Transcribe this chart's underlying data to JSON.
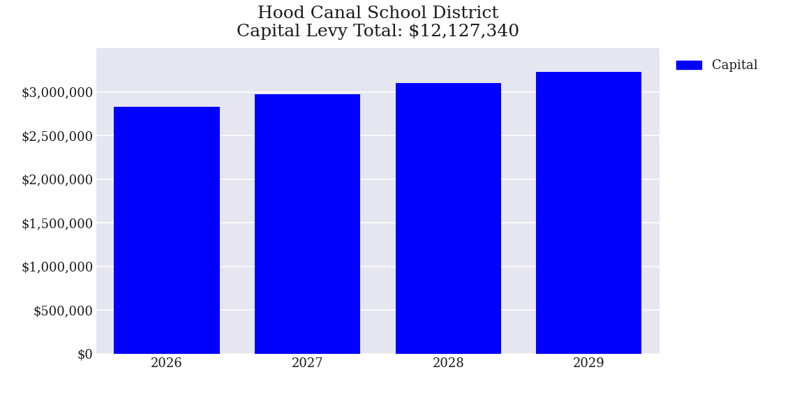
{
  "title_line1": "Hood Canal School District",
  "title_line2": "Capital Levy Total: $12,127,340",
  "categories": [
    "2026",
    "2027",
    "2028",
    "2029"
  ],
  "values": [
    2830000,
    2970000,
    3100000,
    3227340
  ],
  "bar_color": "#0000ff",
  "legend_label": "Capital",
  "figure_bg_color": "#ffffff",
  "plot_bg_color": "#e6e6f0",
  "ylim": [
    0,
    3500000
  ],
  "ytick_values": [
    0,
    500000,
    1000000,
    1500000,
    2000000,
    2500000,
    3000000
  ],
  "title_fontsize": 18,
  "tick_fontsize": 13,
  "legend_fontsize": 13,
  "bar_width": 0.75
}
